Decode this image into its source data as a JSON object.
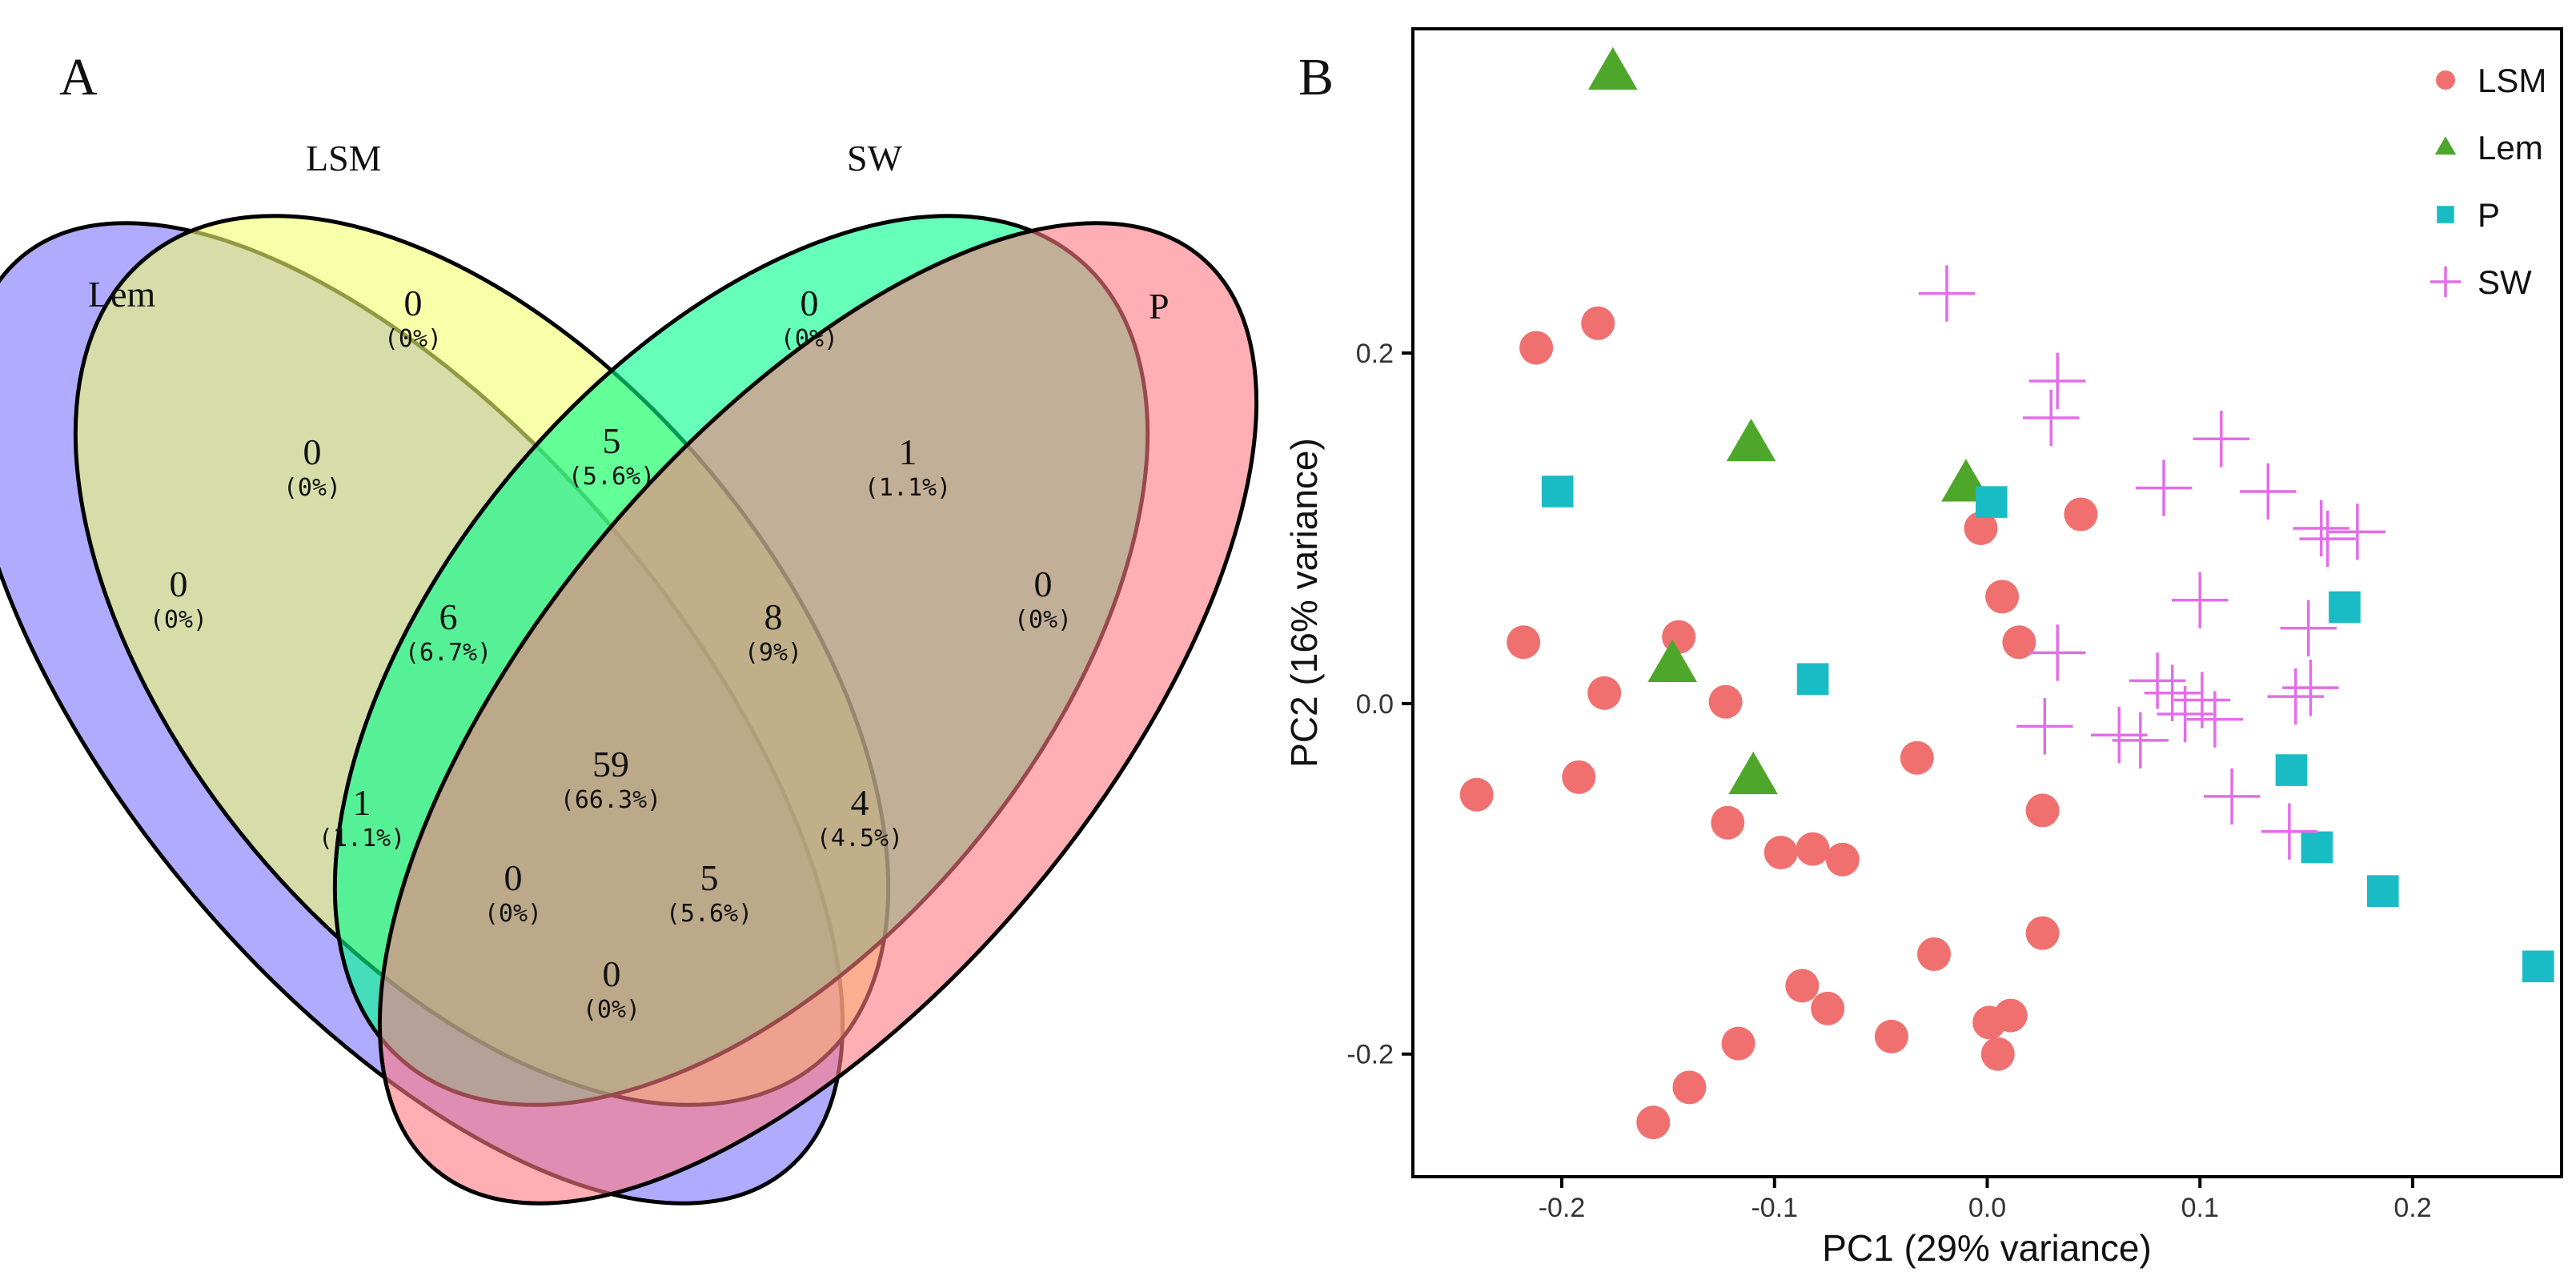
{
  "panel_a": {
    "label": "A",
    "sets": [
      {
        "name": "Lem",
        "color": "#7B73FF"
      },
      {
        "name": "LSM",
        "color": "#F2FF6E"
      },
      {
        "name": "SW",
        "color": "#00FF8C"
      },
      {
        "name": "P",
        "color": "#FF7A80"
      }
    ],
    "regions": [
      {
        "id": "lsm-only",
        "count": "0",
        "percent": "(0%)"
      },
      {
        "id": "sw-only",
        "count": "0",
        "percent": "(0%)"
      },
      {
        "id": "lem-only",
        "count": "0",
        "percent": "(0%)"
      },
      {
        "id": "p-only",
        "count": "0",
        "percent": "(0%)"
      },
      {
        "id": "lem-lsm",
        "count": "0",
        "percent": "(0%)"
      },
      {
        "id": "lsm-sw",
        "count": "5",
        "percent": "(5.6%)"
      },
      {
        "id": "sw-p",
        "count": "1",
        "percent": "(1.1%)"
      },
      {
        "id": "lem-lsm-sw",
        "count": "6",
        "percent": "(6.7%)"
      },
      {
        "id": "lsm-sw-p",
        "count": "8",
        "percent": "(9%)"
      },
      {
        "id": "all-four",
        "count": "59",
        "percent": "(66.3%)"
      },
      {
        "id": "lem-sw",
        "count": "1",
        "percent": "(1.1%)"
      },
      {
        "id": "lsm-p",
        "count": "4",
        "percent": "(4.5%)"
      },
      {
        "id": "lem-sw-p",
        "count": "0",
        "percent": "(0%)"
      },
      {
        "id": "lem-lsm-p",
        "count": "5",
        "percent": "(5.6%)"
      },
      {
        "id": "lem-p",
        "count": "0",
        "percent": "(0%)"
      }
    ]
  },
  "chart_data": {
    "panel_label": "B",
    "type": "scatter",
    "xlabel": "PC1 (29% variance)",
    "ylabel": "PC2 (16% variance)",
    "xlim": [
      -0.27,
      0.27
    ],
    "ylim": [
      -0.27,
      0.385
    ],
    "xticks": [
      -0.2,
      -0.1,
      0.0,
      0.1,
      0.2
    ],
    "xtick_labels": [
      "-0.2",
      "-0.1",
      "0.0",
      "0.1",
      "0.2"
    ],
    "yticks": [
      -0.2,
      0.0,
      0.2
    ],
    "ytick_labels": [
      "-0.2",
      "0.0",
      "0.2"
    ],
    "legend_position": "top-right",
    "series": [
      {
        "name": "LSM",
        "marker": "circle",
        "color": "#F07070",
        "points": [
          [
            -0.212,
            0.203
          ],
          [
            -0.183,
            0.217
          ],
          [
            -0.218,
            0.035
          ],
          [
            -0.145,
            0.038
          ],
          [
            -0.18,
            0.006
          ],
          [
            -0.123,
            0.001
          ],
          [
            -0.192,
            -0.042
          ],
          [
            -0.24,
            -0.052
          ],
          [
            -0.122,
            -0.068
          ],
          [
            -0.097,
            -0.085
          ],
          [
            -0.082,
            -0.083
          ],
          [
            -0.068,
            -0.089
          ],
          [
            -0.033,
            -0.031
          ],
          [
            -0.087,
            -0.161
          ],
          [
            -0.075,
            -0.174
          ],
          [
            -0.117,
            -0.194
          ],
          [
            -0.045,
            -0.19
          ],
          [
            -0.025,
            -0.143
          ],
          [
            -0.14,
            -0.219
          ],
          [
            -0.157,
            -0.239
          ],
          [
            0.011,
            -0.178
          ],
          [
            0.001,
            -0.182
          ],
          [
            0.005,
            -0.2
          ],
          [
            0.026,
            -0.061
          ],
          [
            0.026,
            -0.131
          ],
          [
            0.015,
            0.035
          ],
          [
            0.007,
            0.061
          ],
          [
            -0.003,
            0.1
          ],
          [
            0.044,
            0.108
          ]
        ]
      },
      {
        "name": "Lem",
        "marker": "triangle",
        "color": "#4EA72A",
        "points": [
          [
            -0.176,
            0.36
          ],
          [
            -0.111,
            0.148
          ],
          [
            -0.01,
            0.125
          ],
          [
            -0.148,
            0.022
          ],
          [
            -0.11,
            -0.042
          ]
        ]
      },
      {
        "name": "P",
        "marker": "square",
        "color": "#19BCC4",
        "points": [
          [
            -0.202,
            0.121
          ],
          [
            0.002,
            0.115
          ],
          [
            -0.082,
            0.014
          ],
          [
            0.168,
            0.055
          ],
          [
            0.143,
            -0.038
          ],
          [
            0.155,
            -0.082
          ],
          [
            0.186,
            -0.107
          ],
          [
            0.259,
            -0.15
          ]
        ]
      },
      {
        "name": "SW",
        "marker": "plus",
        "color": "#E36DE9",
        "points": [
          [
            -0.019,
            0.234
          ],
          [
            0.033,
            0.184
          ],
          [
            0.03,
            0.163
          ],
          [
            0.11,
            0.151
          ],
          [
            0.083,
            0.123
          ],
          [
            0.132,
            0.121
          ],
          [
            0.157,
            0.1
          ],
          [
            0.16,
            0.094
          ],
          [
            0.174,
            0.098
          ],
          [
            0.1,
            0.059
          ],
          [
            0.033,
            0.029
          ],
          [
            0.151,
            0.043
          ],
          [
            0.08,
            0.013
          ],
          [
            0.087,
            0.006
          ],
          [
            0.152,
            0.009
          ],
          [
            0.145,
            0.004
          ],
          [
            0.101,
            0.002
          ],
          [
            0.093,
            -0.006
          ],
          [
            0.107,
            -0.009
          ],
          [
            0.027,
            -0.013
          ],
          [
            0.062,
            -0.018
          ],
          [
            0.072,
            -0.021
          ],
          [
            0.115,
            -0.053
          ],
          [
            0.142,
            -0.073
          ]
        ]
      }
    ]
  }
}
